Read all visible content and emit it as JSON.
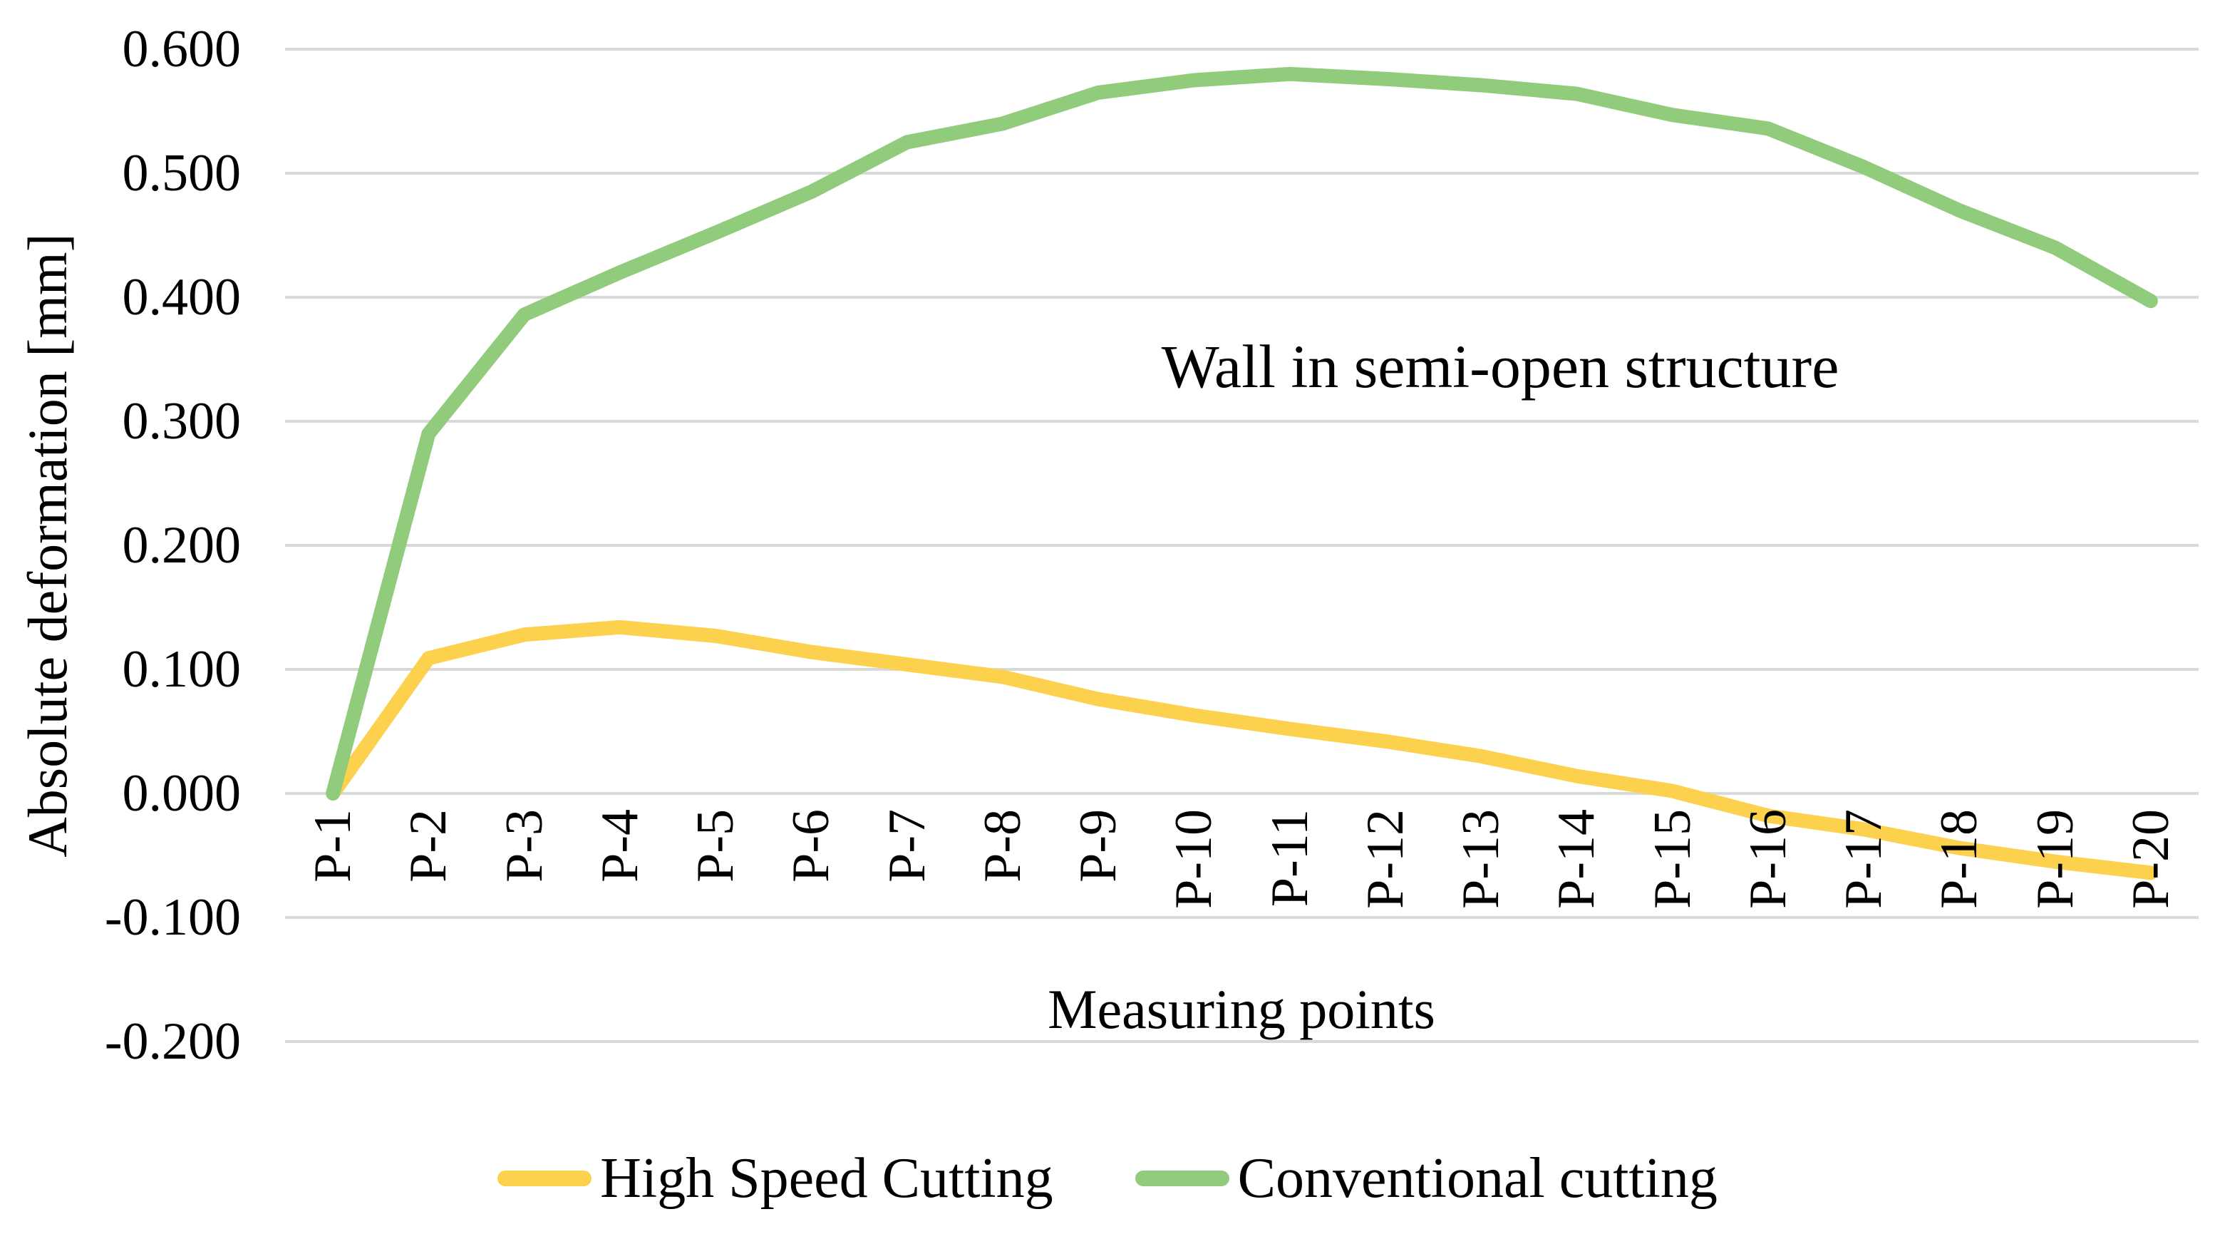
{
  "figure": {
    "annotation": "Wall in semi-open structure",
    "y_axis_title": "Absolute deformation [mm]",
    "x_axis_title": "Measuring points"
  },
  "legend": [
    {
      "label": "High Speed Cutting",
      "color": "#FCD14D"
    },
    {
      "label": "Conventional cutting",
      "color": "#90CC7C"
    }
  ],
  "colors": {
    "background": "#FFFFFF",
    "gridline": "#D9D9D9",
    "text": "#000000",
    "hsc_line": "#FCD14D",
    "conventional_line": "#90CC7C"
  },
  "chart_data": {
    "type": "line",
    "title": "Wall in semi-open structure",
    "xlabel": "Measuring points",
    "ylabel": "Absolute deformation [mm]",
    "categories": [
      "P-1",
      "P-2",
      "P-3",
      "P-4",
      "P-5",
      "P-6",
      "P-7",
      "P-8",
      "P-9",
      "P-10",
      "P-11",
      "P-12",
      "P-13",
      "P-14",
      "P-15",
      "P-16",
      "P-17",
      "P-18",
      "P-19",
      "P-20"
    ],
    "series": [
      {
        "name": "High Speed Cutting",
        "color": "#FCD14D",
        "values": [
          0.0,
          0.109,
          0.128,
          0.134,
          0.127,
          0.114,
          0.104,
          0.094,
          0.076,
          0.063,
          0.052,
          0.042,
          0.03,
          0.014,
          0.002,
          -0.018,
          -0.029,
          -0.044,
          -0.055,
          -0.064
        ]
      },
      {
        "name": "Conventional cutting",
        "color": "#90CC7C",
        "values": [
          0.0,
          0.29,
          0.386,
          0.42,
          0.452,
          0.485,
          0.525,
          0.54,
          0.565,
          0.575,
          0.58,
          0.576,
          0.571,
          0.564,
          0.547,
          0.536,
          0.505,
          0.47,
          0.44,
          0.397
        ]
      }
    ],
    "ylim": [
      -0.2,
      0.6
    ],
    "y_tick_step": 0.1,
    "y_tick_labels": [
      "0.600",
      "0.500",
      "0.400",
      "0.300",
      "0.200",
      "0.100",
      "0.000",
      "-0.100",
      "-0.200"
    ],
    "grid": true,
    "legend_position": "bottom"
  }
}
